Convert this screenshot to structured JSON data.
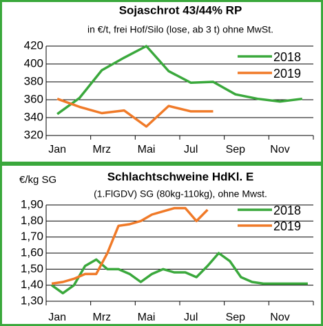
{
  "chart_data": [
    {
      "type": "line",
      "title": "Sojaschrot 43/44% RP",
      "subtitle": "in €/t, frei Hof/Silo (lose, ab 3 t) ohne MwSt.",
      "categories": [
        "Jan",
        null,
        "Mrz",
        null,
        "Mai",
        null,
        "Jul",
        null,
        "Sep",
        null,
        "Nov",
        null
      ],
      "series": [
        {
          "name": "2018",
          "color": "#3aa83c",
          "values": [
            344,
            362,
            393,
            407,
            420,
            392,
            379,
            380,
            366,
            361,
            358,
            361
          ]
        },
        {
          "name": "2019",
          "color": "#f07a28",
          "values": [
            361,
            352,
            345,
            348,
            330,
            353,
            347,
            347,
            null,
            null,
            null,
            null
          ]
        }
      ],
      "ylim": [
        320,
        420
      ],
      "yticks": [
        320,
        340,
        360,
        380,
        400,
        420
      ],
      "grid": true,
      "legend": "top-right"
    },
    {
      "type": "line",
      "title": "Schlachtschweine HdKl. E",
      "subtitle": "(1.FlGDV) SG (80kg-110kg), ohne Mwst.",
      "y_label": "€/kg SG",
      "categories": [
        "Jan",
        null,
        null,
        null,
        "Mrz",
        null,
        null,
        null,
        "Mai",
        null,
        null,
        null,
        "Jul",
        null,
        null,
        null,
        "Sep",
        null,
        null,
        null,
        "Nov",
        null,
        null,
        null
      ],
      "series": [
        {
          "name": "2018",
          "color": "#3aa83c",
          "values": [
            1.4,
            1.35,
            1.4,
            1.52,
            1.56,
            1.5,
            1.5,
            1.47,
            1.42,
            1.47,
            1.5,
            1.48,
            1.48,
            1.45,
            1.52,
            1.6,
            1.55,
            1.45,
            1.42,
            1.41,
            1.41,
            1.41,
            1.41,
            1.41
          ]
        },
        {
          "name": "2019",
          "color": "#f07a28",
          "values": [
            1.41,
            1.42,
            1.44,
            1.47,
            1.47,
            1.6,
            1.77,
            1.78,
            1.8,
            1.84,
            1.86,
            1.88,
            1.88,
            1.8,
            1.87,
            null,
            null,
            null,
            null,
            null,
            null,
            null,
            null,
            null
          ]
        }
      ],
      "ylim": [
        1.3,
        1.9
      ],
      "yticks": [
        {
          "value": 1.3,
          "label": "1,30"
        },
        {
          "value": 1.4,
          "label": "1,40"
        },
        {
          "value": 1.5,
          "label": "1,50"
        },
        {
          "value": 1.6,
          "label": "1,60"
        },
        {
          "value": 1.7,
          "label": "1,70"
        },
        {
          "value": 1.8,
          "label": "1,80"
        },
        {
          "value": 1.9,
          "label": "1,90"
        }
      ],
      "grid": true,
      "legend": "top-right"
    }
  ]
}
